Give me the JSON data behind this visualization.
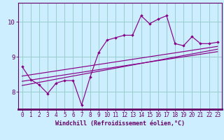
{
  "xlabel": "Windchill (Refroidissement éolien,°C)",
  "bg_color": "#cceeff",
  "line_color": "#880088",
  "grid_color": "#99cccc",
  "axis_color": "#660066",
  "spine_color": "#660066",
  "xlim": [
    -0.5,
    23.5
  ],
  "ylim": [
    7.5,
    10.55
  ],
  "xticks": [
    0,
    1,
    2,
    3,
    4,
    5,
    6,
    7,
    8,
    9,
    10,
    11,
    12,
    13,
    14,
    15,
    16,
    17,
    18,
    19,
    20,
    21,
    22,
    23
  ],
  "yticks": [
    8,
    9,
    10
  ],
  "scatter_x": [
    0,
    1,
    2,
    3,
    4,
    5,
    6,
    7,
    8,
    9,
    10,
    11,
    12,
    13,
    14,
    15,
    16,
    17,
    18,
    19,
    20,
    21,
    22,
    23
  ],
  "scatter_y": [
    8.72,
    8.35,
    8.2,
    7.95,
    8.25,
    8.32,
    8.32,
    7.62,
    8.42,
    9.12,
    9.48,
    9.55,
    9.62,
    9.62,
    10.18,
    9.95,
    10.08,
    10.18,
    9.38,
    9.32,
    9.58,
    9.38,
    9.38,
    9.42
  ],
  "reg_lines": [
    {
      "x": [
        0,
        23
      ],
      "y": [
        8.45,
        9.3
      ]
    },
    {
      "x": [
        0,
        23
      ],
      "y": [
        8.3,
        9.15
      ]
    },
    {
      "x": [
        0,
        23
      ],
      "y": [
        8.18,
        9.22
      ]
    }
  ],
  "tick_fontsize": 5.5,
  "label_fontsize": 6.0
}
